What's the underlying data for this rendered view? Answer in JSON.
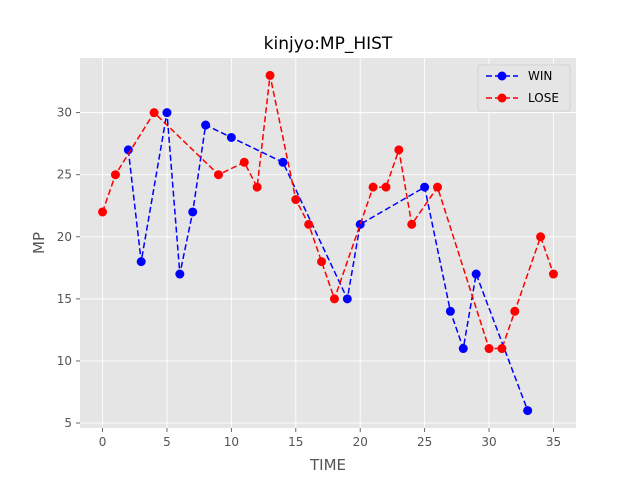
{
  "chart_data": {
    "type": "line",
    "title": "kinjyo:MP_HIST",
    "xlabel": "TIME",
    "ylabel": "MP",
    "xlim": [
      -1.75,
      36.75
    ],
    "ylim": [
      4.6,
      34.4
    ],
    "xticks": [
      0,
      5,
      10,
      15,
      20,
      25,
      30,
      35
    ],
    "yticks": [
      5,
      10,
      15,
      20,
      25,
      30
    ],
    "grid": true,
    "legend_position": "top-right",
    "series": [
      {
        "name": "WIN",
        "color": "#0000ff",
        "line_style": "dashed",
        "marker": "circle",
        "points": [
          [
            2,
            27
          ],
          [
            3,
            18
          ],
          [
            5,
            30
          ],
          [
            6,
            17
          ],
          [
            7,
            22
          ],
          [
            8,
            29
          ],
          [
            10,
            28
          ],
          [
            14,
            26
          ],
          [
            19,
            15
          ],
          [
            20,
            21
          ],
          [
            25,
            24
          ],
          [
            27,
            14
          ],
          [
            28,
            11
          ],
          [
            29,
            17
          ],
          [
            33,
            6
          ]
        ]
      },
      {
        "name": "LOSE",
        "color": "#ff0000",
        "line_style": "dashed",
        "marker": "circle",
        "points": [
          [
            0,
            22
          ],
          [
            1,
            25
          ],
          [
            4,
            30
          ],
          [
            9,
            25
          ],
          [
            11,
            26
          ],
          [
            12,
            24
          ],
          [
            13,
            33
          ],
          [
            15,
            23
          ],
          [
            16,
            21
          ],
          [
            17,
            18
          ],
          [
            18,
            15
          ],
          [
            21,
            24
          ],
          [
            22,
            24
          ],
          [
            23,
            27
          ],
          [
            24,
            21
          ],
          [
            26,
            24
          ],
          [
            30,
            11
          ],
          [
            31,
            11
          ],
          [
            32,
            14
          ],
          [
            34,
            20
          ],
          [
            35,
            17
          ]
        ]
      }
    ]
  }
}
